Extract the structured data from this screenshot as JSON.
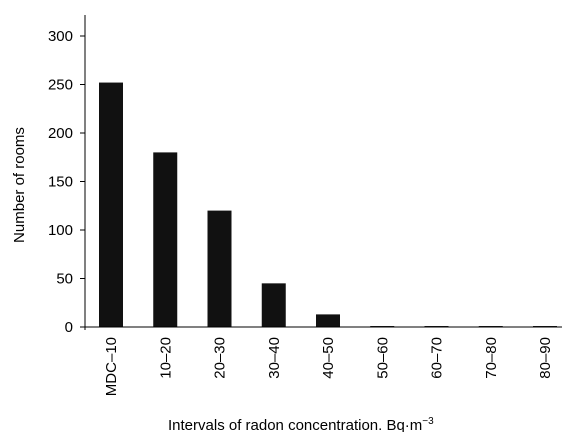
{
  "chart_data": {
    "type": "bar",
    "title": "",
    "xlabel": "Intervals of radon concentration. Bq·m",
    "xlabel_superscript": "−3",
    "ylabel": "Number of rooms",
    "categories": [
      "MDC–10",
      "10–20",
      "20–30",
      "30–40",
      "40–50",
      "50–60",
      "60–70",
      "70–80",
      "80–90"
    ],
    "values": [
      252,
      180,
      120,
      45,
      13,
      1,
      1,
      1,
      1
    ],
    "ylim": [
      0,
      300
    ],
    "yticks": [
      0,
      50,
      100,
      150,
      200,
      250,
      300
    ],
    "grid": false,
    "legend": "none",
    "bar_color": "#111111"
  }
}
